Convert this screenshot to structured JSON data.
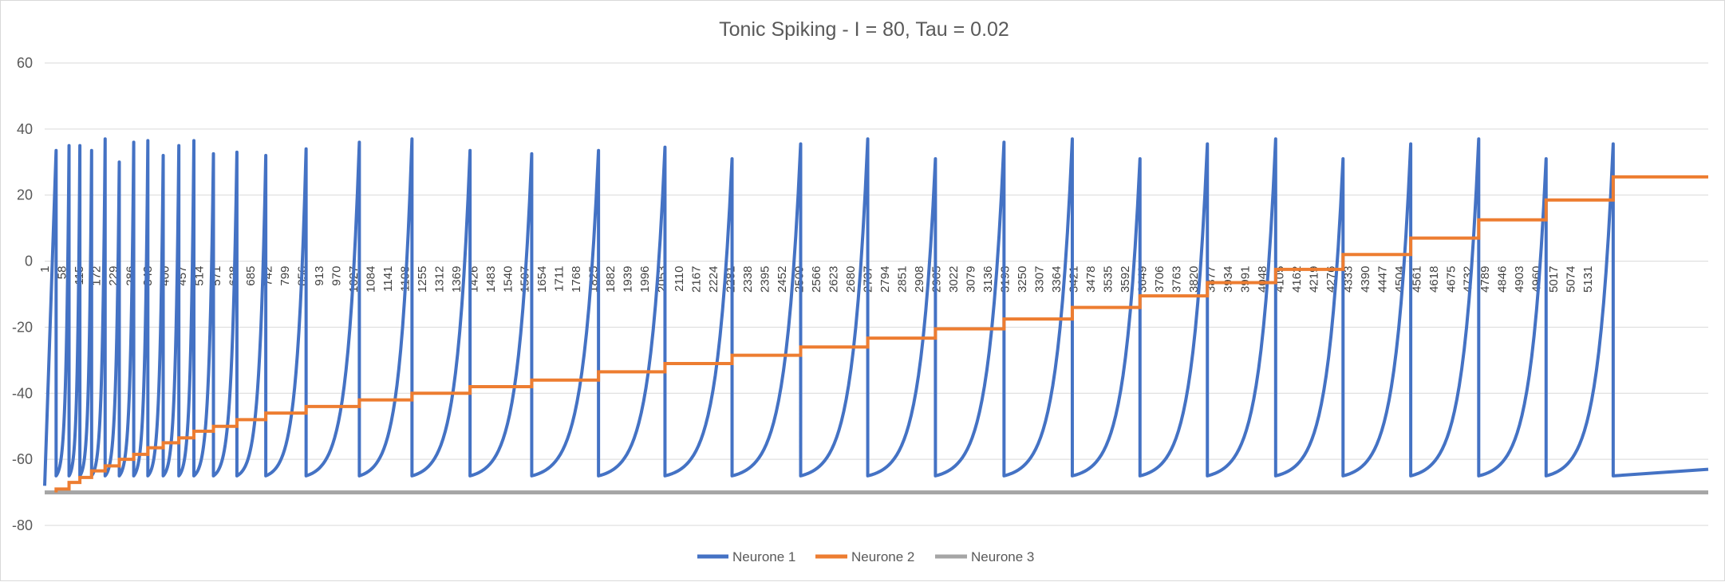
{
  "chart_data": {
    "type": "line",
    "title": "Tonic Spiking - I = 80, Tau = 0.02",
    "xlabel": "",
    "ylabel": "",
    "ylim": [
      -80,
      60
    ],
    "yticks": [
      60,
      40,
      20,
      0,
      -20,
      -40,
      -60,
      -80
    ],
    "xlim": [
      1,
      5531
    ],
    "xtick_labels": [
      "1",
      "58",
      "115",
      "172",
      "229",
      "286",
      "343",
      "400",
      "457",
      "514",
      "571",
      "628",
      "685",
      "742",
      "799",
      "856",
      "913",
      "970",
      "1027",
      "1084",
      "1141",
      "1198",
      "1255",
      "1312",
      "1369",
      "1426",
      "1483",
      "1540",
      "1597",
      "1654",
      "1711",
      "1768",
      "1825",
      "1882",
      "1939",
      "1996",
      "2053",
      "2110",
      "2167",
      "2224",
      "2281",
      "2338",
      "2395",
      "2452",
      "2509",
      "2566",
      "2623",
      "2680",
      "2737",
      "2794",
      "2851",
      "2908",
      "2965",
      "3022",
      "3079",
      "3136",
      "3193",
      "3250",
      "3307",
      "3364",
      "3421",
      "3478",
      "3535",
      "3592",
      "3649",
      "3706",
      "3763",
      "3820",
      "3877",
      "3934",
      "3991",
      "4048",
      "4105",
      "4162",
      "4219",
      "4276",
      "4333",
      "4390",
      "4447",
      "4504",
      "4561",
      "4618",
      "4675",
      "4732",
      "4789",
      "4846",
      "4903",
      "4960",
      "5017",
      "5074",
      "5131"
    ],
    "grid": true,
    "legend_position": "bottom",
    "series": [
      {
        "name": "Neurone 1",
        "color": "#4472C4",
        "shape": "spike-train",
        "reset": -65,
        "initial": -68,
        "final_value": -63,
        "spike_x": [
          39,
          82,
          118,
          157,
          202,
          249,
          297,
          344,
          395,
          447,
          497,
          562,
          640,
          736,
          870,
          1047,
          1222,
          1415,
          1620,
          1842,
          2063,
          2286,
          2514,
          2737,
          2962,
          3190,
          3417,
          3642,
          3866,
          4093,
          4317,
          4542,
          4768,
          4992,
          5215
        ],
        "spike_peaks": [
          33.5,
          35,
          35,
          33.5,
          37,
          30,
          36,
          36.5,
          32,
          35,
          36.5,
          32.5,
          33,
          32,
          34,
          36,
          37,
          33.5,
          32.5,
          33.5,
          34.5,
          31,
          35.5,
          37,
          31,
          36,
          37,
          31,
          35.5,
          37,
          31,
          35.5,
          37,
          31,
          35.5
        ]
      },
      {
        "name": "Neurone 2",
        "color": "#ED7D31",
        "shape": "step",
        "step_x": [
          39,
          82,
          118,
          157,
          202,
          249,
          297,
          344,
          395,
          447,
          497,
          562,
          640,
          736,
          870,
          1047,
          1222,
          1415,
          1620,
          1842,
          2063,
          2286,
          2514,
          2737,
          2962,
          3190,
          3417,
          3642,
          3866,
          4093,
          4317,
          4542,
          4768,
          4992,
          5215
        ],
        "step_y": [
          -70,
          -69,
          -67,
          -65.5,
          -63.5,
          -62,
          -60,
          -58.5,
          -56.5,
          -55,
          -53.5,
          -51.5,
          -50,
          -48,
          -46,
          -44,
          -42,
          -40,
          -38,
          -36,
          -33.5,
          -31,
          -28.5,
          -26,
          -23.3,
          -20.5,
          -17.5,
          -14,
          -10.5,
          -6.5,
          -2.5,
          2,
          7,
          12.5,
          18.5,
          25.5
        ]
      },
      {
        "name": "Neurone 3",
        "color": "#A5A5A5",
        "shape": "constant",
        "values": [
          -70,
          -70
        ]
      }
    ]
  }
}
